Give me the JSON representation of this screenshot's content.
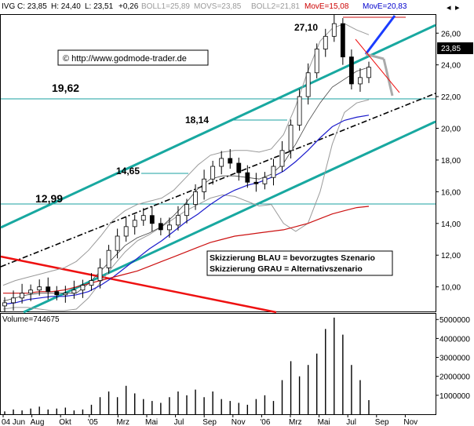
{
  "header": {
    "symbol": "IVG",
    "close_label": "C: 23,85",
    "high_label": "H: 24,40",
    "low_label": "L: 23,51",
    "change_label": "+0,26",
    "boll1_label": "BOLL1=25,89",
    "movs_label": "MOVS=23,85",
    "boll2_label": "BOLL2=21,81",
    "move_red_label": "MovE=15,08",
    "move_blue_label": "MovE=20,83"
  },
  "copyright": "© http://www.godmode-trader.de",
  "legend": {
    "blue": "Skizzierung BLAU = bevorzugtes Szenario",
    "grau": "Skizzierung GRAU = Alternativszenario"
  },
  "levels": {
    "l1": "19,62",
    "l2": "18,14",
    "l3": "14,65",
    "l4": "12,99",
    "l5": "27,10"
  },
  "price_badge": "23,85",
  "volume_label": "Volume=744675",
  "chart_data": {
    "type": "line",
    "price_axis": {
      "ylim": [
        8.4,
        27.2
      ],
      "ticks": [
        10,
        12,
        14,
        16,
        18,
        20,
        22,
        24,
        26
      ],
      "tick_labels": [
        "10,00",
        "12,00",
        "14,00",
        "16,00",
        "18,00",
        "20,00",
        "22,00",
        "24,00",
        "26,00"
      ]
    },
    "volume_axis": {
      "ylim": [
        0,
        5300000
      ],
      "ticks": [
        1000000,
        2000000,
        3000000,
        4000000,
        5000000
      ],
      "tick_labels": [
        "1000000",
        "2000000",
        "3000000",
        "4000000",
        "5000000"
      ]
    },
    "x_labels": [
      "04 Jun",
      "Aug",
      "Okt",
      "'05",
      "Mrz",
      "Mai",
      "Jul",
      "Sep",
      "Nov",
      "'06",
      "Mrz",
      "Mai",
      "Jul",
      "Sep",
      "Nov"
    ],
    "x_label_index": [
      0,
      2,
      4,
      7,
      9,
      11,
      13,
      15,
      17,
      19,
      21,
      23,
      25,
      27,
      29
    ],
    "close": [
      9.0,
      9.3,
      9.6,
      9.8,
      10.0,
      9.7,
      9.5,
      9.6,
      9.8,
      10.1,
      10.4,
      11.2,
      12.3,
      13.2,
      13.8,
      14.2,
      14.5,
      14.0,
      13.6,
      13.9,
      14.5,
      15.2,
      16.0,
      16.8,
      17.6,
      18.1,
      17.8,
      17.2,
      16.6,
      16.5,
      16.9,
      17.6,
      18.6,
      20.2,
      22.0,
      23.5,
      25.0,
      25.8,
      26.6,
      24.5,
      22.8,
      23.2,
      23.85
    ],
    "candle_step": 9.2,
    "boll_upper": [
      10.1,
      10.4,
      10.6,
      10.8,
      11.0,
      11.2,
      11.6,
      12.3,
      13.2,
      14.2,
      14.8,
      15.2,
      15.4,
      15.6,
      16.1,
      16.9,
      17.7,
      18.3,
      18.5,
      18.6,
      18.6,
      18.5,
      18.7,
      19.6,
      21.4,
      23.6,
      25.5,
      26.3,
      26.6,
      26.2,
      25.9
    ],
    "boll_lower": [
      8.6,
      8.7,
      8.7,
      8.6,
      8.5,
      8.5,
      8.6,
      9.3,
      10.3,
      11.3,
      12.2,
      12.9,
      13.3,
      13.8,
      14.3,
      14.8,
      15.2,
      15.6,
      15.8,
      15.7,
      15.4,
      15.1,
      15.2,
      14.0,
      13.5,
      14.0,
      16.0,
      19.0,
      21.0,
      21.6,
      21.8
    ],
    "moving_avg_short": [
      9.1,
      9.3,
      9.5,
      9.6,
      9.6,
      9.6,
      9.6,
      10.2,
      11.0,
      11.8,
      12.6,
      13.1,
      13.4,
      13.8,
      14.5,
      15.3,
      16.2,
      16.8,
      17.0,
      17.0,
      16.9,
      16.8,
      17.1,
      17.8,
      19.0,
      20.4,
      21.6,
      22.6,
      23.1,
      23.6,
      23.85
    ],
    "moving_avg_blue": [
      8.9,
      9.0,
      9.2,
      9.3,
      9.4,
      9.4,
      9.5,
      9.7,
      10.1,
      10.6,
      11.2,
      11.8,
      12.4,
      12.9,
      13.5,
      14.1,
      14.6,
      15.2,
      15.7,
      16.1,
      16.4,
      16.6,
      16.9,
      17.3,
      17.9,
      18.6,
      19.4,
      20.1,
      20.5,
      20.7,
      20.83
    ],
    "moving_avg_red": [
      9.6,
      9.6,
      9.6,
      9.7,
      9.7,
      9.8,
      10.0,
      10.2,
      10.4,
      10.6,
      10.8,
      11.0,
      11.3,
      11.6,
      11.9,
      12.2,
      12.5,
      12.8,
      13.0,
      13.2,
      13.3,
      13.4,
      13.5,
      13.6,
      13.8,
      14.0,
      14.3,
      14.6,
      14.8,
      15.0,
      15.08
    ],
    "horizontal_levels": [
      19.62,
      12.99
    ],
    "volume": [
      150000,
      250000,
      200000,
      300000,
      400000,
      250000,
      300000,
      350000,
      200000,
      250000,
      500000,
      900000,
      1200000,
      900000,
      1500000,
      1100000,
      800000,
      700000,
      600000,
      900000,
      1200000,
      1000000,
      1300000,
      900000,
      1200000,
      800000,
      700000,
      600000,
      500000,
      800000,
      1000000,
      700000,
      1800000,
      2800000,
      2000000,
      2600000,
      3200000,
      4500000,
      5100000,
      4200000,
      2600000,
      1800000,
      744675
    ]
  }
}
